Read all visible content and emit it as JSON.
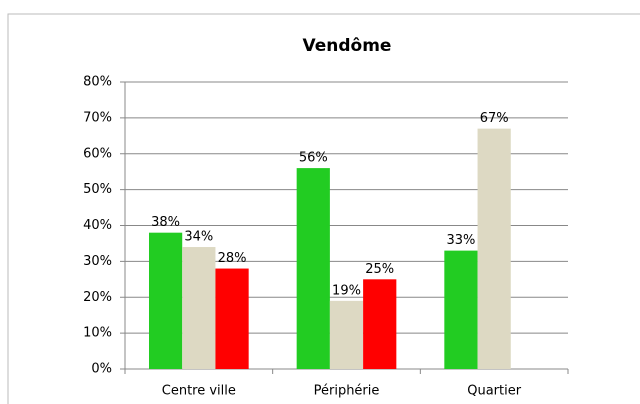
{
  "chart_data": {
    "type": "bar",
    "title": "Vendôme",
    "categories": [
      "Centre ville",
      "Périphérie",
      "Quartier"
    ],
    "series": [
      {
        "color": "#22cc22",
        "values": [
          38,
          56,
          33
        ],
        "value_labels": [
          "38%",
          "56%",
          "33%"
        ]
      },
      {
        "color": "#ddd9c3",
        "values": [
          34,
          19,
          67
        ],
        "value_labels": [
          "34%",
          "19%",
          "67%"
        ]
      },
      {
        "color": "#ff0000",
        "values": [
          28,
          25,
          null
        ],
        "value_labels": [
          "28%",
          "25%",
          null
        ]
      }
    ],
    "ylim": [
      0,
      80
    ],
    "yticks": [
      {
        "value": 0,
        "label": "0%"
      },
      {
        "value": 10,
        "label": "10%"
      },
      {
        "value": 20,
        "label": "20%"
      },
      {
        "value": 30,
        "label": "30%"
      },
      {
        "value": 40,
        "label": "40%"
      },
      {
        "value": 50,
        "label": "50%"
      },
      {
        "value": 60,
        "label": "60%"
      },
      {
        "value": 70,
        "label": "70%"
      },
      {
        "value": 80,
        "label": "80%"
      }
    ],
    "grid": true
  }
}
